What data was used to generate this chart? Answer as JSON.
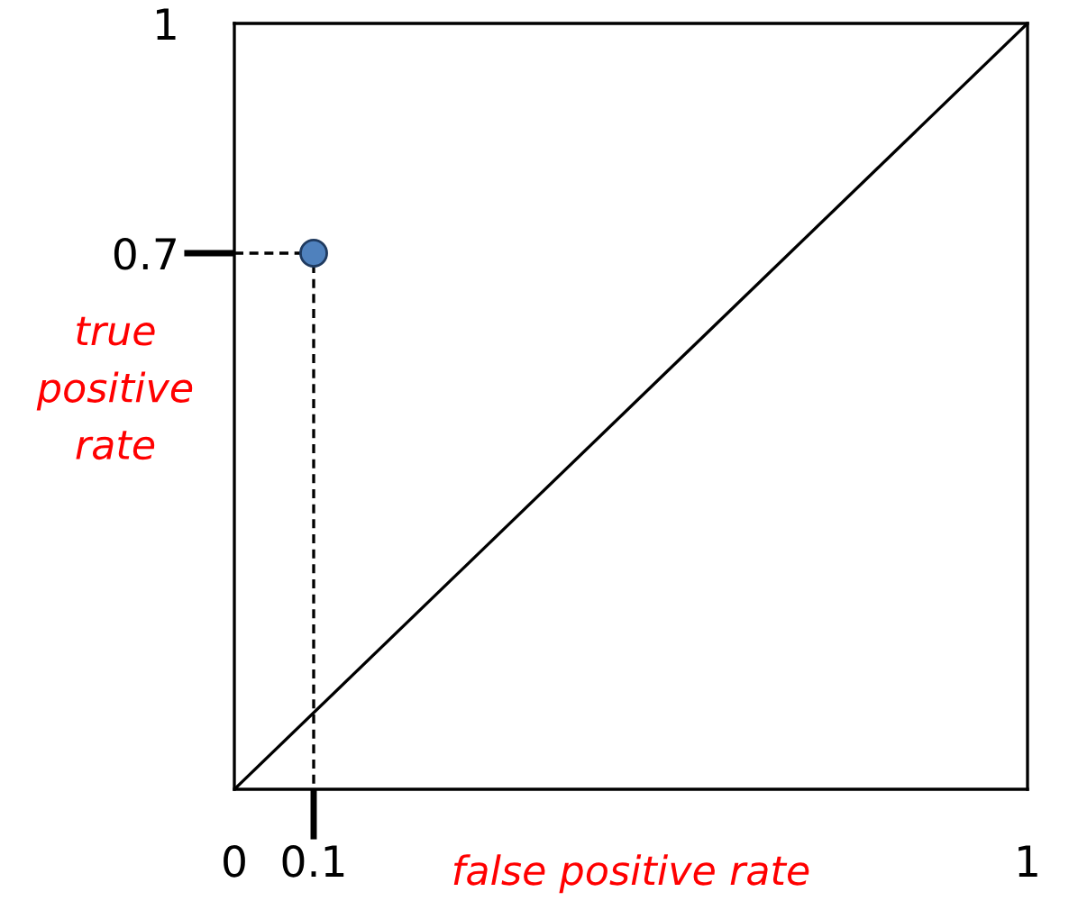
{
  "chart_data": {
    "type": "scatter",
    "xlabel": "false positive rate",
    "ylabel": "true positive rate",
    "xlim": [
      0,
      1
    ],
    "ylim": [
      0,
      1
    ],
    "xticks": [
      0,
      0.1,
      1
    ],
    "yticks": [
      {
        "value": 0,
        "label": null
      },
      0.7,
      1
    ],
    "grid": false,
    "legend": false,
    "series": [
      {
        "type": "line",
        "color": "#000000",
        "x": [
          0,
          1
        ],
        "values": [
          0,
          1
        ],
        "line_style": "solid",
        "marker": "none"
      },
      {
        "type": "line",
        "color": "#000000",
        "x": [
          0,
          0.1,
          0.1
        ],
        "values": [
          0.7,
          0.7,
          0
        ],
        "line_style": "dashed",
        "marker": "none"
      },
      {
        "color": "#4f81bd",
        "x": [
          0.1
        ],
        "values": [
          0.7
        ],
        "marker": "circle"
      }
    ]
  }
}
